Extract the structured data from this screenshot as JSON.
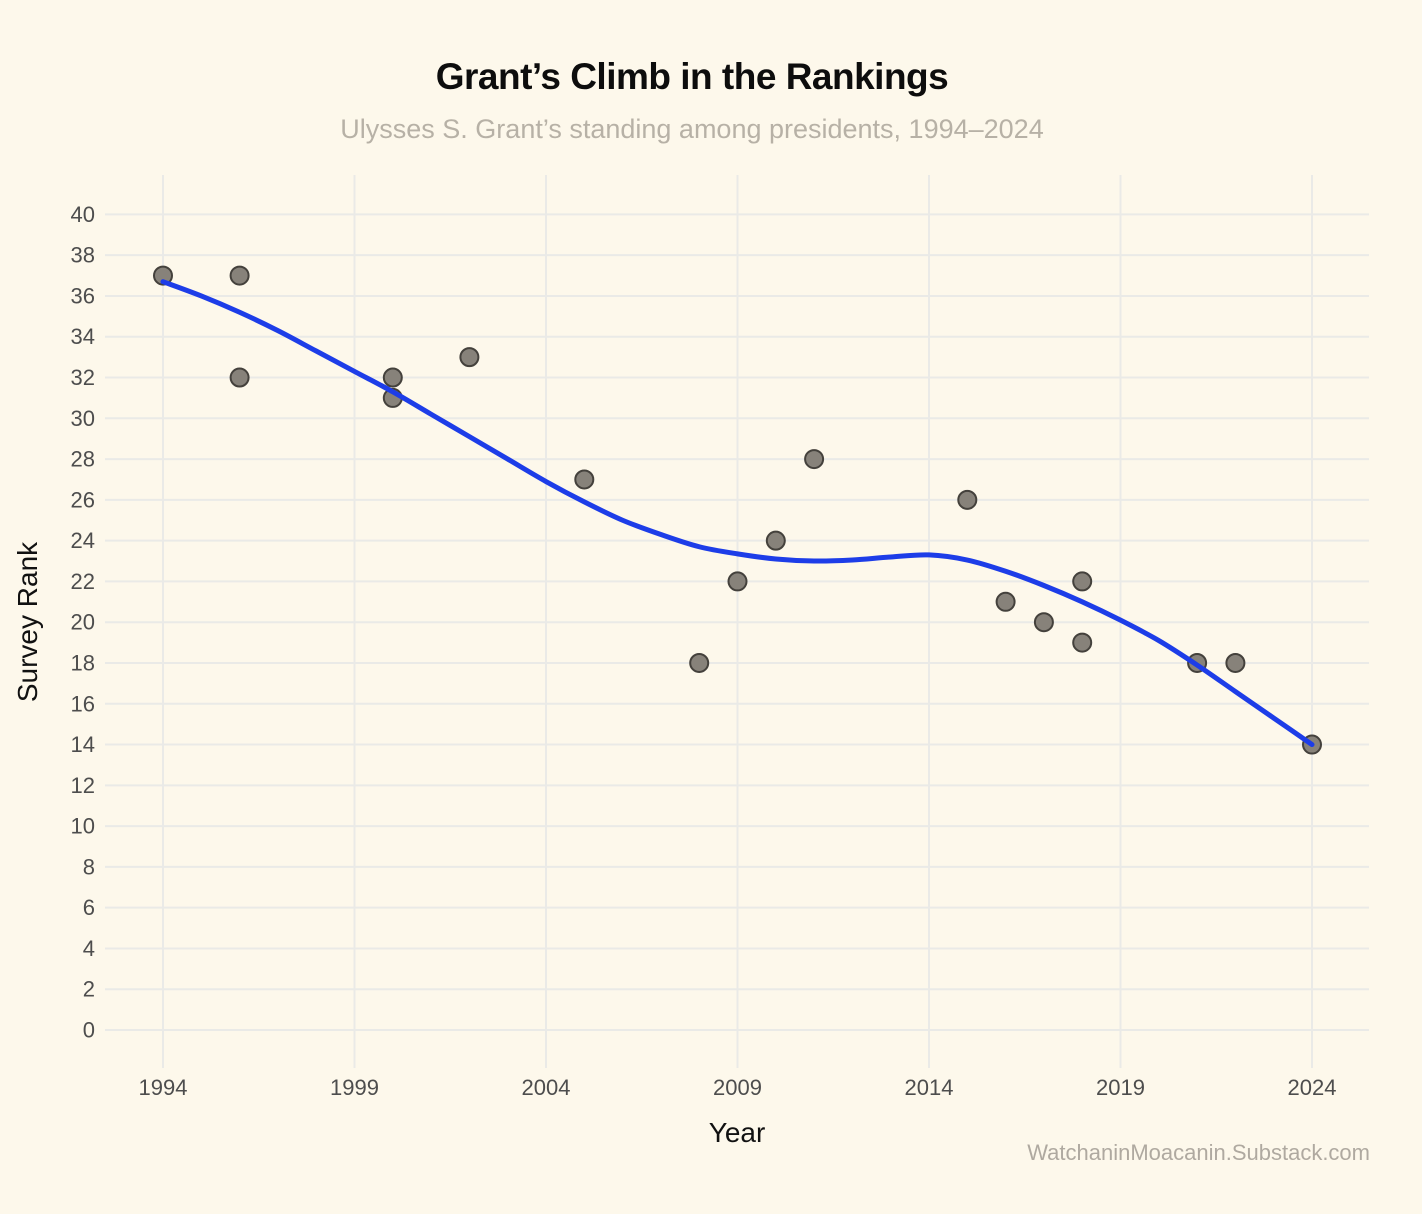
{
  "header": {
    "title": "Grant’s Climb in the Rankings",
    "subtitle": "Ulysses S. Grant’s standing among presidents, 1994–2024"
  },
  "footer": {
    "credit": "WatchaninMoacanin.Substack.com"
  },
  "chart_data": {
    "type": "scatter",
    "title": "Grant’s Climb in the Rankings",
    "subtitle": "Ulysses S. Grant’s standing among presidents, 1994–2024",
    "xlabel": "Year",
    "ylabel": "Survey Rank",
    "x_ticks": [
      1994,
      1999,
      2004,
      2009,
      2014,
      2019,
      2024
    ],
    "y_ticks": [
      0,
      2,
      4,
      6,
      8,
      10,
      12,
      14,
      16,
      18,
      20,
      22,
      24,
      26,
      28,
      30,
      32,
      34,
      36,
      38,
      40
    ],
    "xlim": [
      1992.5,
      2025.5
    ],
    "ylim": [
      -1.9,
      41.9
    ],
    "grid": true,
    "legend": "none",
    "points": [
      [
        1994,
        37
      ],
      [
        1996,
        37
      ],
      [
        1996,
        32
      ],
      [
        2000,
        32
      ],
      [
        2000,
        31
      ],
      [
        2002,
        33
      ],
      [
        2005,
        27
      ],
      [
        2008,
        18
      ],
      [
        2009,
        22
      ],
      [
        2010,
        24
      ],
      [
        2011,
        28
      ],
      [
        2015,
        26
      ],
      [
        2016,
        21
      ],
      [
        2017,
        20
      ],
      [
        2018,
        22
      ],
      [
        2018,
        19
      ],
      [
        2021,
        18
      ],
      [
        2022,
        18
      ],
      [
        2024,
        14
      ]
    ],
    "series": [
      {
        "name": "smoothed trend",
        "type": "line",
        "anchors": [
          [
            1994,
            36.7
          ],
          [
            1995,
            36.0
          ],
          [
            1996,
            35.2
          ],
          [
            1997,
            34.3
          ],
          [
            1998,
            33.3
          ],
          [
            1999,
            32.3
          ],
          [
            2000,
            31.3
          ],
          [
            2001,
            30.2
          ],
          [
            2002,
            29.1
          ],
          [
            2003,
            28.0
          ],
          [
            2004,
            26.9
          ],
          [
            2005,
            25.9
          ],
          [
            2006,
            25.0
          ],
          [
            2007,
            24.3
          ],
          [
            2008,
            23.7
          ],
          [
            2009,
            23.35
          ],
          [
            2010,
            23.1
          ],
          [
            2011,
            23.0
          ],
          [
            2012,
            23.05
          ],
          [
            2013,
            23.2
          ],
          [
            2014,
            23.3
          ],
          [
            2015,
            23.05
          ],
          [
            2016,
            22.5
          ],
          [
            2017,
            21.8
          ],
          [
            2018,
            21.0
          ],
          [
            2019,
            20.1
          ],
          [
            2020,
            19.1
          ],
          [
            2021,
            17.9
          ],
          [
            2022,
            16.6
          ],
          [
            2023,
            15.3
          ],
          [
            2024,
            14.0
          ]
        ]
      }
    ],
    "colors": {
      "background": "#FDF8EB",
      "grid": "#EAEAE7",
      "point_fill": "#87827A",
      "point_stroke": "#44413C",
      "trend": "#1D3DE8",
      "tick_text": "#4D4D4D",
      "axis_title_text": "#111111",
      "title_text": "#0D0D0D",
      "subtitle_text": "#B7B1A6",
      "footer_text": "#AFA9A0"
    }
  }
}
